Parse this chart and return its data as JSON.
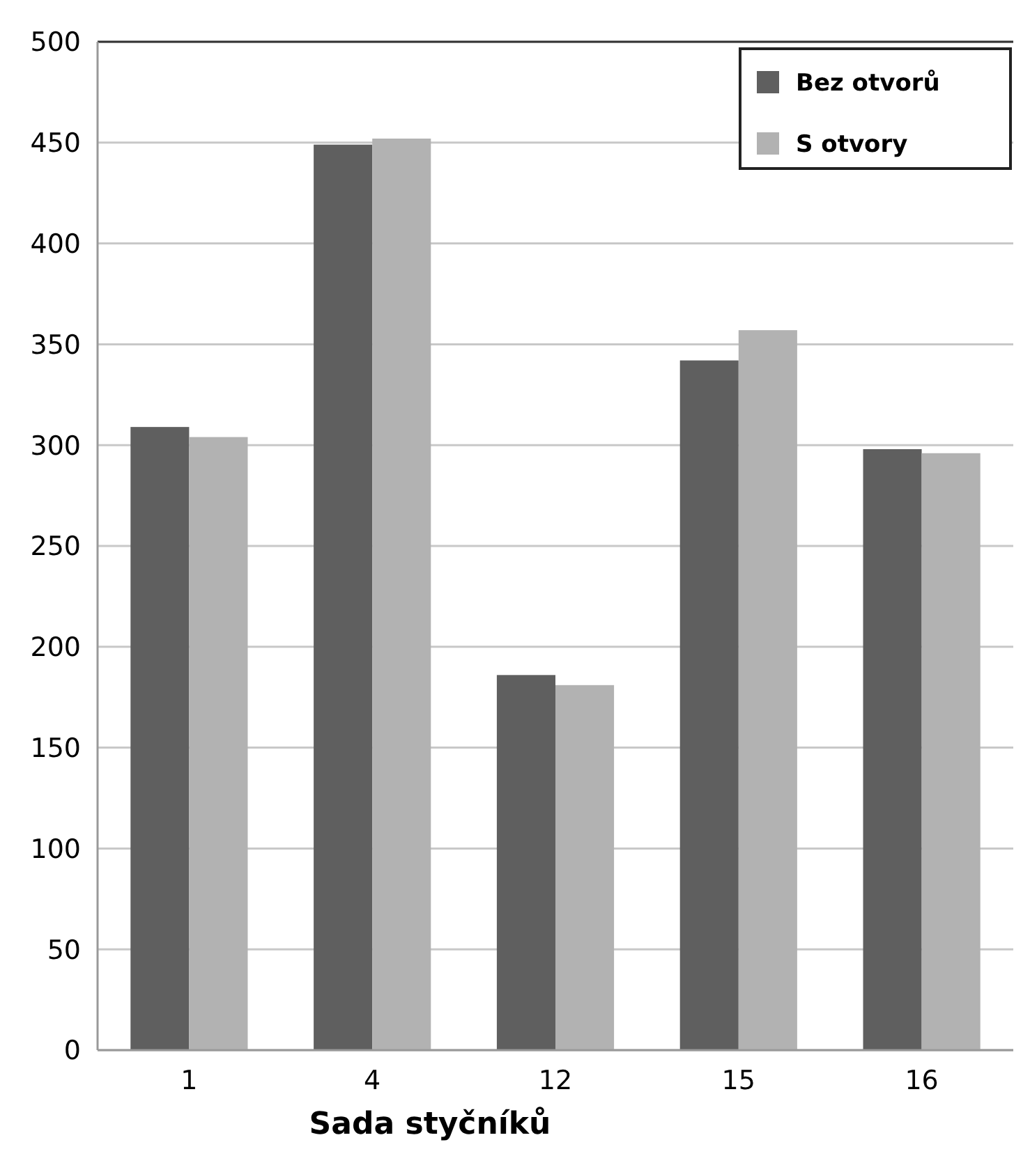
{
  "chart_data": {
    "type": "bar",
    "xlabel": "Sada styčníků",
    "categories": [
      "1",
      "4",
      "12",
      "15",
      "16"
    ],
    "series": [
      {
        "name": "Bez otvorů",
        "color": "#5f5f5f",
        "values": [
          309,
          449,
          186,
          342,
          298
        ]
      },
      {
        "name": "S otvory",
        "color": "#b2b2b2",
        "values": [
          304,
          452,
          181,
          357,
          296
        ]
      }
    ],
    "ylim": [
      0,
      500
    ],
    "yticks": [
      0,
      50,
      100,
      150,
      200,
      250,
      300,
      350,
      400,
      450,
      500
    ],
    "grid": "y",
    "legend": "top right"
  }
}
